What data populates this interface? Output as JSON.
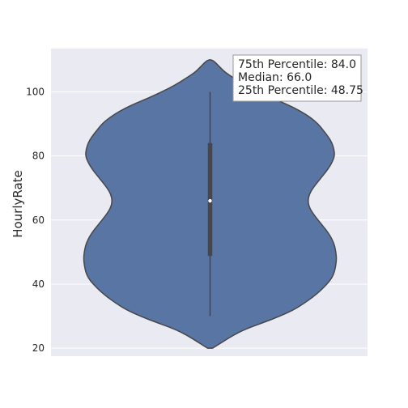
{
  "chart_data": {
    "type": "violin",
    "title": "",
    "xlabel": "",
    "ylabel": "HourlyRate",
    "ylim": [
      17.5,
      113.5
    ],
    "yticks": [
      20,
      40,
      60,
      80,
      100
    ],
    "grid": true,
    "series": [
      {
        "name": "",
        "color": "#5975a4",
        "min": 30,
        "q1": 48.75,
        "median": 66.0,
        "q3": 84.0,
        "max": 100,
        "kde_range": [
          20,
          110
        ],
        "density_profile": [
          [
            20.0,
            0.02
          ],
          [
            22.0,
            0.1
          ],
          [
            24.0,
            0.18
          ],
          [
            26.0,
            0.28
          ],
          [
            28.0,
            0.42
          ],
          [
            30.0,
            0.55
          ],
          [
            32.0,
            0.66
          ],
          [
            34.0,
            0.74
          ],
          [
            36.0,
            0.81
          ],
          [
            38.0,
            0.87
          ],
          [
            40.0,
            0.92
          ],
          [
            42.0,
            0.96
          ],
          [
            44.0,
            0.98
          ],
          [
            46.0,
            0.99
          ],
          [
            48.0,
            0.995
          ],
          [
            50.0,
            0.99
          ],
          [
            52.0,
            0.98
          ],
          [
            54.0,
            0.96
          ],
          [
            56.0,
            0.93
          ],
          [
            58.0,
            0.89
          ],
          [
            60.0,
            0.85
          ],
          [
            62.0,
            0.81
          ],
          [
            64.0,
            0.78
          ],
          [
            66.0,
            0.77
          ],
          [
            68.0,
            0.78
          ],
          [
            70.0,
            0.81
          ],
          [
            72.0,
            0.85
          ],
          [
            74.0,
            0.89
          ],
          [
            76.0,
            0.93
          ],
          [
            78.0,
            0.96
          ],
          [
            80.0,
            0.98
          ],
          [
            82.0,
            0.975
          ],
          [
            84.0,
            0.96
          ],
          [
            86.0,
            0.93
          ],
          [
            88.0,
            0.89
          ],
          [
            90.0,
            0.85
          ],
          [
            92.0,
            0.79
          ],
          [
            94.0,
            0.71
          ],
          [
            96.0,
            0.61
          ],
          [
            98.0,
            0.49
          ],
          [
            100.0,
            0.38
          ],
          [
            102.0,
            0.28
          ],
          [
            104.0,
            0.2
          ],
          [
            106.0,
            0.12
          ],
          [
            108.0,
            0.07
          ],
          [
            110.0,
            0.02
          ]
        ]
      }
    ],
    "annotation": {
      "lines": [
        "75th Percentile: 84.0",
        "Median: 66.0",
        "25th Percentile: 48.75"
      ],
      "placement": "top-right"
    }
  }
}
